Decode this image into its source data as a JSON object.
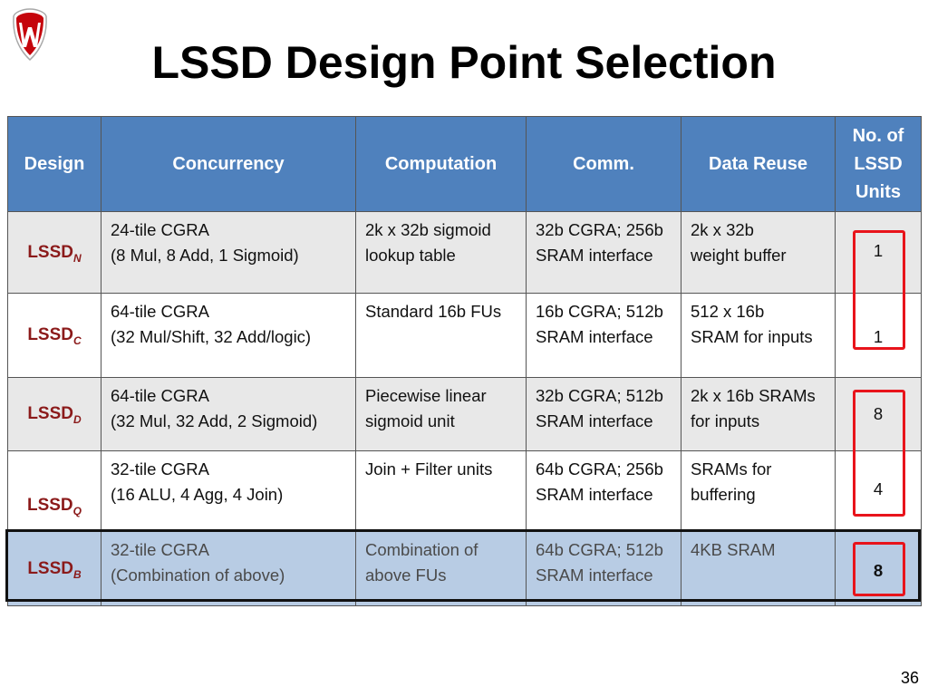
{
  "slide": {
    "title": "LSSD Design Point Selection",
    "page_number": "36"
  },
  "table": {
    "headers": {
      "design": "Design",
      "concurrency": "Concurrency",
      "computation": "Computation",
      "comm": "Comm.",
      "data_reuse": "Data Reuse",
      "units_line1": "No. of",
      "units_line2": "LSSD",
      "units_line3": "Units"
    },
    "rows": [
      {
        "design_base": "LSSD",
        "design_sub": "N",
        "concurrency_1": "24-tile CGRA",
        "concurrency_2": "(8 Mul,  8 Add, 1 Sigmoid)",
        "computation_1": "2k x 32b sigmoid",
        "computation_2": "lookup table",
        "comm_1": "32b CGRA; 256b",
        "comm_2": "SRAM interface",
        "reuse_1": "2k x 32b",
        "reuse_2": "weight buffer",
        "units": "1"
      },
      {
        "design_base": "LSSD",
        "design_sub": "C",
        "concurrency_1": "64-tile CGRA",
        "concurrency_2": "(32 Mul/Shift, 32 Add/logic)",
        "computation_1": "Standard 16b FUs",
        "computation_2": "",
        "comm_1": "16b CGRA; 512b",
        "comm_2": "SRAM interface",
        "reuse_1": "512 x 16b",
        "reuse_2": "SRAM for inputs",
        "units": "1"
      },
      {
        "design_base": "LSSD",
        "design_sub": "D",
        "concurrency_1": "64-tile CGRA",
        "concurrency_2": "(32 Mul, 32 Add, 2 Sigmoid)",
        "computation_1": "Piecewise linear",
        "computation_2": "sigmoid unit",
        "comm_1": "32b CGRA; 512b",
        "comm_2": "SRAM interface",
        "reuse_1": "2k x 16b SRAMs",
        "reuse_2": "for inputs",
        "units": "8"
      },
      {
        "design_base": "LSSD",
        "design_sub": "Q",
        "concurrency_1": "32-tile CGRA",
        "concurrency_2": "(16 ALU, 4 Agg, 4 Join)",
        "computation_1": "Join + Filter units",
        "computation_2": "",
        "comm_1": "64b CGRA; 256b",
        "comm_2": "SRAM interface",
        "reuse_1": "SRAMs for",
        "reuse_2": "buffering",
        "units": "4"
      },
      {
        "design_base": "LSSD",
        "design_sub": "B",
        "concurrency_1": "32-tile CGRA",
        "concurrency_2": "(Combination of above)",
        "computation_1": "Combination of",
        "computation_2": "above FUs",
        "comm_1": "64b CGRA; 512b",
        "comm_2": "SRAM interface",
        "reuse_1": "4KB SRAM",
        "reuse_2": "",
        "units": "8"
      }
    ]
  },
  "colors": {
    "header_bg": "#4f81bd",
    "highlight_row_bg": "#b8cce4",
    "design_text": "#8b1a1a",
    "callout_red": "#e8141b"
  },
  "icons": {
    "logo": "university-crest-icon"
  }
}
